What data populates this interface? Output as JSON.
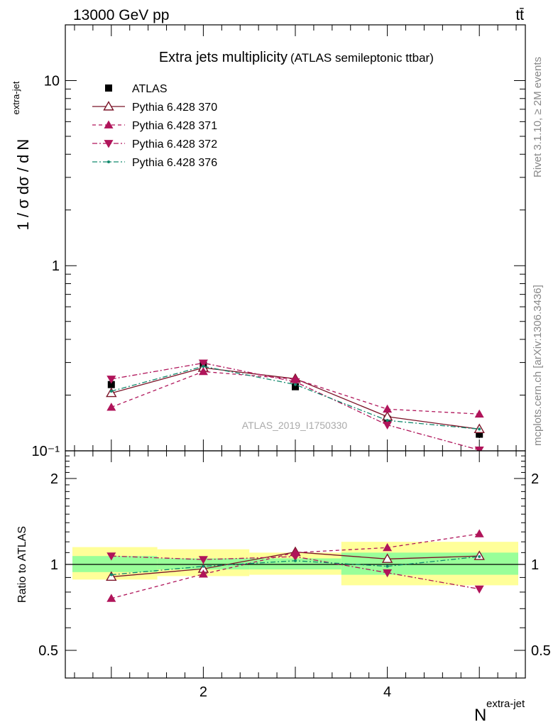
{
  "header": {
    "energy_label": "13000 GeV pp",
    "process_label": "tt̄"
  },
  "side_labels": {
    "rivet": "Rivet 3.1.10, ≥ 2M events",
    "mcplots": "mcplots.cern.ch [arXiv:1306.3436]"
  },
  "chart_data": [
    {
      "type": "line",
      "panel": "main",
      "title": "Extra jets multiplicity",
      "subtitle": "(ATLAS semileptonic ttbar)",
      "watermark": "ATLAS_2019_I1750330",
      "ylabel": "1 / σ dσ / d N",
      "ylabel_sup": "extra-jet",
      "yscale": "log",
      "ylim": [
        0.1,
        20
      ],
      "xlim": [
        0.5,
        5.5
      ],
      "ytick_labels": [
        "10⁻¹",
        "1",
        "10"
      ],
      "ytick_values": [
        0.1,
        1,
        10
      ],
      "legend_position": "top-left",
      "x": [
        1,
        2,
        3,
        4,
        5
      ],
      "series": [
        {
          "name": "ATLAS",
          "values": [
            0.228,
            0.29,
            0.222,
            0.148,
            0.123
          ],
          "errors": [
            0.01,
            0.01,
            0.008,
            0.006,
            0.006
          ],
          "color": "#000000",
          "marker": "square",
          "style": "none"
        },
        {
          "name": "Pythia 6.428 370",
          "values": [
            0.205,
            0.281,
            0.245,
            0.153,
            0.131
          ],
          "color": "#7b1428",
          "marker": "triangle-up-open",
          "style": "solid"
        },
        {
          "name": "Pythia 6.428 371",
          "values": [
            0.172,
            0.268,
            0.244,
            0.168,
            0.158
          ],
          "color": "#b0145a",
          "marker": "triangle-up",
          "style": "dashed"
        },
        {
          "name": "Pythia 6.428 372",
          "values": [
            0.244,
            0.298,
            0.236,
            0.138,
            0.101
          ],
          "color": "#b0145a",
          "marker": "triangle-down",
          "style": "dashdot"
        },
        {
          "name": "Pythia 6.428 376",
          "values": [
            0.21,
            0.286,
            0.228,
            0.146,
            0.131
          ],
          "color": "#138a6e",
          "marker": "dot",
          "style": "dashdot"
        }
      ]
    },
    {
      "type": "line",
      "panel": "ratio",
      "ylabel": "Ratio to ATLAS",
      "xlabel": "N",
      "xlabel_sup": "extra-jet",
      "ylim": [
        0.4,
        2.5
      ],
      "xlim": [
        0.5,
        5.5
      ],
      "ytick_labels": [
        "0.5",
        "1",
        "2"
      ],
      "ytick_values": [
        0.5,
        1,
        2
      ],
      "xtick_labels": [
        "2",
        "4"
      ],
      "xtick_values": [
        2,
        4
      ],
      "x": [
        1,
        2,
        3,
        4,
        5
      ],
      "bands": {
        "bin_edges": [
          0.5,
          1.5,
          2.5,
          3.5,
          5.5
        ],
        "stat_low": [
          0.94,
          0.96,
          0.96,
          0.92
        ],
        "stat_high": [
          1.07,
          1.05,
          1.05,
          1.1
        ],
        "total_low": [
          0.885,
          0.91,
          0.92,
          0.845
        ],
        "total_high": [
          1.15,
          1.13,
          1.1,
          1.2
        ],
        "stat_color": "#99ff99",
        "total_color": "#ffff99"
      },
      "series": [
        {
          "name": "Pythia 6.428 370",
          "values": [
            0.905,
            0.965,
            1.105,
            1.045,
            1.07
          ],
          "color": "#7b1428",
          "marker": "triangle-up-open",
          "style": "solid"
        },
        {
          "name": "Pythia 6.428 371",
          "values": [
            0.76,
            0.925,
            1.1,
            1.145,
            1.28
          ],
          "color": "#b0145a",
          "marker": "triangle-up",
          "style": "dashed"
        },
        {
          "name": "Pythia 6.428 372",
          "values": [
            1.07,
            1.04,
            1.065,
            0.935,
            0.82
          ],
          "color": "#b0145a",
          "marker": "triangle-down",
          "style": "dashdot"
        },
        {
          "name": "Pythia 6.428 376",
          "values": [
            0.92,
            0.985,
            1.03,
            0.985,
            1.065
          ],
          "color": "#138a6e",
          "marker": "dot",
          "style": "dashdot"
        }
      ]
    }
  ]
}
